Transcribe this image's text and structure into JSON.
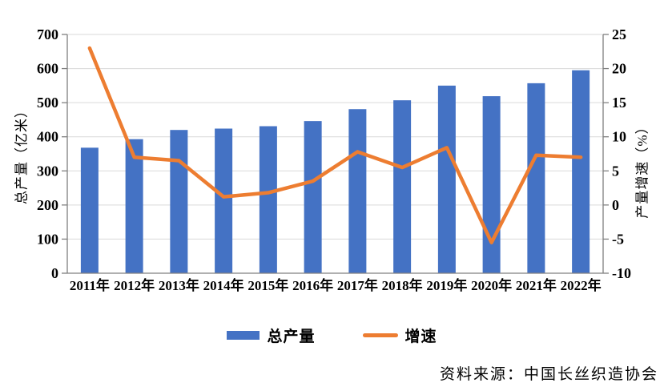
{
  "chart_data": {
    "type": "bar+line",
    "title": "",
    "categories": [
      "2011年",
      "2012年",
      "2013年",
      "2014年",
      "2015年",
      "2016年",
      "2017年",
      "2018年",
      "2019年",
      "2020年",
      "2021年",
      "2022年"
    ],
    "series": [
      {
        "name": "总产量",
        "kind": "bar",
        "axis": "left",
        "unit": "亿米",
        "color": "#4472C4",
        "values": [
          368,
          393,
          420,
          424,
          431,
          446,
          481,
          507,
          550,
          519,
          557,
          595
        ]
      },
      {
        "name": "增速",
        "kind": "line",
        "axis": "right",
        "unit": "%",
        "color": "#ED7D31",
        "values": [
          23,
          7,
          6.5,
          1.2,
          1.8,
          3.5,
          7.8,
          5.5,
          8.4,
          -5.5,
          7.3,
          7
        ]
      }
    ],
    "left_axis": {
      "title": "总产量（亿米）",
      "min": 0,
      "max": 700,
      "step": 100
    },
    "right_axis": {
      "title": "产量增速（%）",
      "min": -10,
      "max": 25,
      "step": 5
    },
    "grid": true,
    "legend_position": "bottom"
  },
  "legend": {
    "items": [
      {
        "label": "总产量",
        "marker": "rect",
        "color": "#4472C4"
      },
      {
        "label": "增速",
        "marker": "line",
        "color": "#ED7D31"
      }
    ]
  },
  "source_note": "资料来源：中国长丝织造协会",
  "colors": {
    "bar": "#4472C4",
    "line": "#ED7D31",
    "gridline": "#D9D9D9",
    "axis": "#808080",
    "text": "#000000",
    "background": "#FFFFFF"
  }
}
